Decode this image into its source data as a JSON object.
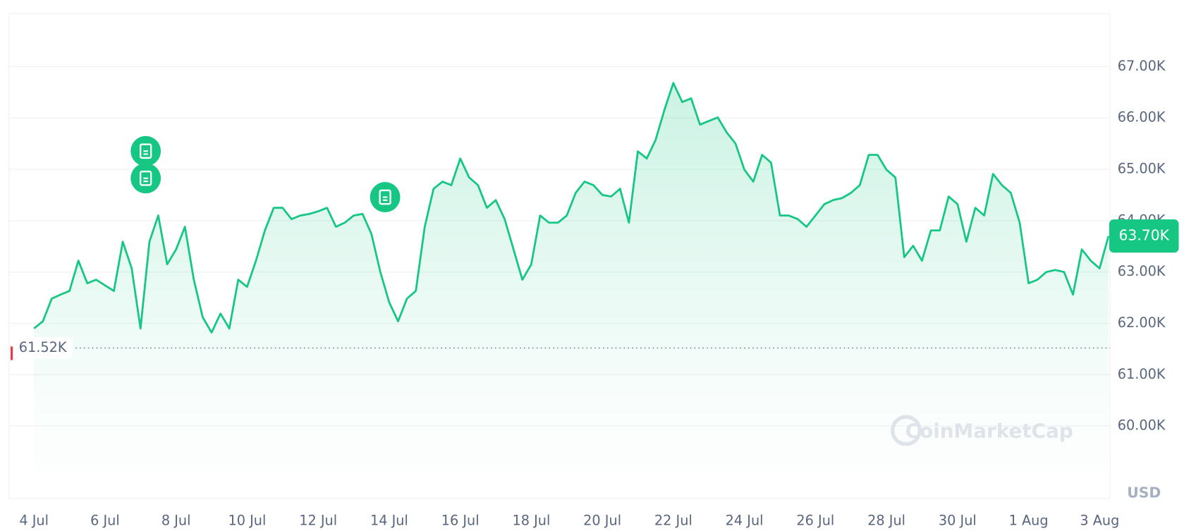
{
  "chart_data": {
    "type": "line",
    "color": "#16c784",
    "grid": true,
    "currency": "USD",
    "watermark": "CoinMarketCap",
    "reference_line": {
      "value": 61520,
      "label": "61.52K"
    },
    "current_price": {
      "value": 63700,
      "label": "63.70K"
    },
    "ylim": [
      58590,
      68030
    ],
    "yticks": [
      {
        "value": 60000,
        "label": "60.00K"
      },
      {
        "value": 61000,
        "label": "61.00K"
      },
      {
        "value": 62000,
        "label": "62.00K"
      },
      {
        "value": 63000,
        "label": "63.00K"
      },
      {
        "value": 64000,
        "label": "64.00K"
      },
      {
        "value": 65000,
        "label": "65.00K"
      },
      {
        "value": 66000,
        "label": "66.00K"
      },
      {
        "value": 67000,
        "label": "67.00K"
      }
    ],
    "categories": [
      "4 Jul",
      null,
      null,
      null,
      null,
      null,
      null,
      null,
      "6 Jul",
      null,
      null,
      null,
      null,
      null,
      null,
      null,
      "8 Jul",
      null,
      null,
      null,
      null,
      null,
      null,
      null,
      "10 Jul",
      null,
      null,
      null,
      null,
      null,
      null,
      null,
      "12 Jul",
      null,
      null,
      null,
      null,
      null,
      null,
      null,
      "14 Jul",
      null,
      null,
      null,
      null,
      null,
      null,
      null,
      "16 Jul",
      null,
      null,
      null,
      null,
      null,
      null,
      null,
      "18 Jul",
      null,
      null,
      null,
      null,
      null,
      null,
      null,
      "20 Jul",
      null,
      null,
      null,
      null,
      null,
      null,
      null,
      "22 Jul",
      null,
      null,
      null,
      null,
      null,
      null,
      null,
      "24 Jul",
      null,
      null,
      null,
      null,
      null,
      null,
      null,
      "26 Jul",
      null,
      null,
      null,
      null,
      null,
      null,
      null,
      "28 Jul",
      null,
      null,
      null,
      null,
      null,
      null,
      null,
      "30 Jul",
      null,
      null,
      null,
      null,
      null,
      null,
      null,
      "1 Aug",
      null,
      null,
      null,
      null,
      null,
      null,
      null,
      "3 Aug",
      null
    ],
    "values": [
      61900,
      62040,
      62480,
      62560,
      62630,
      63220,
      62780,
      62850,
      62740,
      62630,
      63590,
      63070,
      61900,
      63590,
      64100,
      63150,
      63440,
      63880,
      62850,
      62120,
      61820,
      62190,
      61900,
      62850,
      62710,
      63220,
      63810,
      64250,
      64250,
      64030,
      64100,
      64130,
      64180,
      64250,
      63880,
      63960,
      64100,
      64130,
      63740,
      63000,
      62410,
      62040,
      62480,
      62630,
      63880,
      64620,
      64760,
      64690,
      65210,
      64840,
      64690,
      64250,
      64400,
      64030,
      63440,
      62850,
      63150,
      64100,
      63960,
      63960,
      64100,
      64540,
      64760,
      64690,
      64500,
      64470,
      64620,
      63960,
      65350,
      65210,
      65570,
      66160,
      66680,
      66310,
      66380,
      65870,
      65940,
      66010,
      65720,
      65500,
      64990,
      64760,
      65280,
      65130,
      64100,
      64100,
      64030,
      63880,
      64100,
      64320,
      64400,
      64440,
      64540,
      64690,
      65280,
      65280,
      64990,
      64840,
      63290,
      63510,
      63220,
      63810,
      63810,
      64470,
      64320,
      63590,
      64250,
      64100,
      64910,
      64690,
      64540,
      63960,
      62780,
      62850,
      63000,
      63040,
      63000,
      62560,
      63440,
      63220,
      63070,
      63700
    ]
  }
}
